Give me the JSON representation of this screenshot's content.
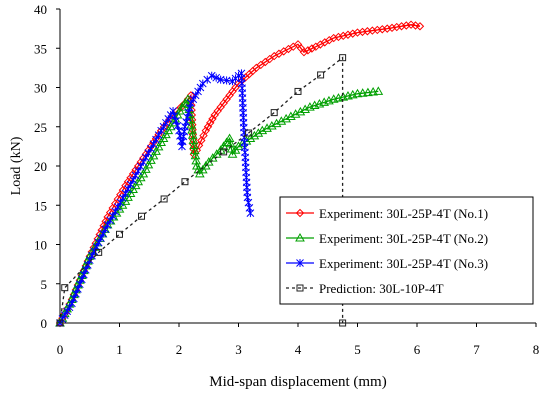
{
  "chart_data": {
    "type": "line",
    "title": "",
    "xlabel": "Mid-span displacement (mm)",
    "ylabel": "Load (kN)",
    "xlim": [
      0,
      8
    ],
    "ylim": [
      0,
      40
    ],
    "xticks": [
      "0",
      "1",
      "2",
      "3",
      "4",
      "5",
      "6",
      "7",
      "8"
    ],
    "yticks": [
      "0",
      "5",
      "10",
      "15",
      "20",
      "25",
      "30",
      "35",
      "40"
    ],
    "grid": false,
    "legend_position": "bottom-right",
    "series": [
      {
        "name": "Experiment: 30L-25P-4T (No.1)",
        "color": "#ff0000",
        "marker": "diamond",
        "points": [
          [
            0,
            0
          ],
          [
            0.2,
            3
          ],
          [
            0.5,
            8.5
          ],
          [
            0.8,
            13.5
          ],
          [
            1.1,
            17.5
          ],
          [
            1.4,
            21
          ],
          [
            1.7,
            24.5
          ],
          [
            1.9,
            26.5
          ],
          [
            2.1,
            28
          ],
          [
            2.2,
            29
          ],
          [
            2.25,
            21.5
          ],
          [
            2.3,
            22
          ],
          [
            2.45,
            24.5
          ],
          [
            2.6,
            26.5
          ],
          [
            2.8,
            28.5
          ],
          [
            3.0,
            30.5
          ],
          [
            3.3,
            32.5
          ],
          [
            3.6,
            34
          ],
          [
            4.0,
            35.5
          ],
          [
            4.1,
            34.5
          ],
          [
            4.3,
            35.2
          ],
          [
            4.6,
            36.3
          ],
          [
            5.0,
            37
          ],
          [
            5.5,
            37.5
          ],
          [
            5.9,
            38
          ],
          [
            6.05,
            37.8
          ]
        ]
      },
      {
        "name": "Experiment: 30L-25P-4T (No.2)",
        "color": "#00a000",
        "marker": "triangle",
        "points": [
          [
            0,
            0
          ],
          [
            0.2,
            3
          ],
          [
            0.5,
            8.5
          ],
          [
            0.8,
            12.5
          ],
          [
            1.1,
            15.5
          ],
          [
            1.4,
            19
          ],
          [
            1.7,
            23
          ],
          [
            1.9,
            25.5
          ],
          [
            2.05,
            27.5
          ],
          [
            2.15,
            28.5
          ],
          [
            2.3,
            20
          ],
          [
            2.35,
            19
          ],
          [
            2.5,
            20.5
          ],
          [
            2.7,
            22
          ],
          [
            2.85,
            23.5
          ],
          [
            2.9,
            21.5
          ],
          [
            3.0,
            22.5
          ],
          [
            3.4,
            24.5
          ],
          [
            3.8,
            26
          ],
          [
            4.2,
            27.5
          ],
          [
            4.6,
            28.5
          ],
          [
            5.0,
            29.2
          ],
          [
            5.35,
            29.5
          ]
        ]
      },
      {
        "name": "Experiment: 30L-25P-4T (No.3)",
        "color": "#0000ff",
        "marker": "asterisk",
        "points": [
          [
            0,
            0
          ],
          [
            0.2,
            2.5
          ],
          [
            0.5,
            8
          ],
          [
            0.8,
            12.5
          ],
          [
            1.1,
            16.5
          ],
          [
            1.4,
            20.5
          ],
          [
            1.7,
            24.5
          ],
          [
            1.9,
            27
          ],
          [
            2.0,
            24.5
          ],
          [
            2.05,
            22.5
          ],
          [
            2.1,
            25
          ],
          [
            2.2,
            28
          ],
          [
            2.4,
            30.5
          ],
          [
            2.55,
            31.5
          ],
          [
            2.7,
            31
          ],
          [
            2.9,
            30.8
          ],
          [
            3.0,
            31.5
          ],
          [
            3.05,
            31.8
          ],
          [
            3.1,
            23
          ],
          [
            3.15,
            16
          ],
          [
            3.2,
            14
          ]
        ]
      },
      {
        "name": "Prediction: 30L-10P-4T",
        "color": "#202020",
        "marker": "square",
        "dashed": true,
        "points": [
          [
            0,
            0
          ],
          [
            0.08,
            4.5
          ],
          [
            0.65,
            9
          ],
          [
            1.0,
            11.3
          ],
          [
            1.37,
            13.6
          ],
          [
            1.75,
            15.8
          ],
          [
            2.1,
            18
          ],
          [
            2.75,
            21.8
          ],
          [
            3.17,
            24.2
          ],
          [
            3.6,
            26.8
          ],
          [
            4.0,
            29.5
          ],
          [
            4.38,
            31.6
          ],
          [
            4.75,
            33.8
          ],
          [
            4.75,
            0
          ]
        ]
      }
    ]
  }
}
